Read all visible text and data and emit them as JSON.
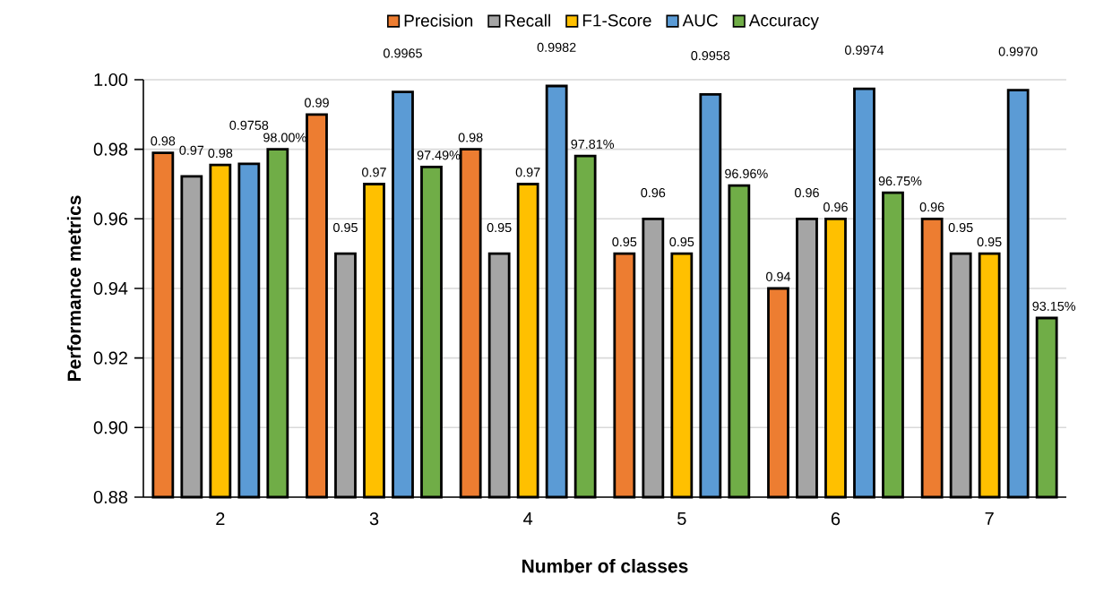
{
  "chart_data": {
    "type": "bar",
    "xlabel": "Number of classes",
    "ylabel": "Performance metrics",
    "categories": [
      "2",
      "3",
      "4",
      "5",
      "6",
      "7"
    ],
    "series": [
      {
        "name": "Precision",
        "color": "#ed7d31",
        "values": [
          0.979,
          0.99,
          0.98,
          0.95,
          0.94,
          0.96
        ],
        "value_labels": [
          "0.98",
          "0.99",
          "0.98",
          "0.95",
          "0.94",
          "0.96"
        ]
      },
      {
        "name": "Recall",
        "color": "#a5a5a5",
        "values": [
          0.9722,
          0.95,
          0.95,
          0.96,
          0.96,
          0.95
        ],
        "value_labels": [
          "0.97",
          "0.95",
          "0.95",
          "0.96",
          "0.96",
          "0.95"
        ]
      },
      {
        "name": "F1-Score",
        "color": "#ffc000",
        "values": [
          0.9755,
          0.97,
          0.97,
          0.95,
          0.96,
          0.95
        ],
        "value_labels": [
          "0.98",
          "0.97",
          "0.97",
          "0.95",
          "0.96",
          "0.95"
        ]
      },
      {
        "name": "AUC",
        "color": "#5b9bd5",
        "values": [
          0.9758,
          0.9965,
          0.9982,
          0.9958,
          0.9974,
          0.997
        ],
        "value_labels": [
          "0.9758",
          "0.9965",
          "0.9982",
          "0.9958",
          "0.9974",
          "0.9970"
        ]
      },
      {
        "name": "Accuracy",
        "color": "#70ad47",
        "values": [
          0.98,
          0.9749,
          0.9781,
          0.9696,
          0.9675,
          0.9315
        ],
        "value_labels": [
          "98.00%",
          "97.49%",
          "97.81%",
          "96.96%",
          "96.75%",
          "93.15%"
        ]
      }
    ],
    "ylim": [
      0.88,
      1.0
    ],
    "yticks": [
      {
        "value": 0.88,
        "label": "0.88"
      },
      {
        "value": 0.9,
        "label": "0.90"
      },
      {
        "value": 0.92,
        "label": "0.92"
      },
      {
        "value": 0.94,
        "label": "0.94"
      },
      {
        "value": 0.96,
        "label": "0.96"
      },
      {
        "value": 0.98,
        "label": "0.98"
      },
      {
        "value": 1.0,
        "label": "1.00"
      }
    ],
    "grid": "y",
    "legend": "top"
  }
}
